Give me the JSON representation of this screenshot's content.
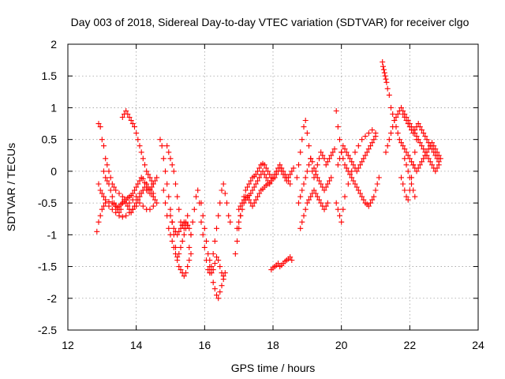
{
  "chart_data": {
    "type": "scatter",
    "title": "Day 003 of 2018, Sidereal Day-to-day VTEC variation (SDTVAR) for receiver clgo",
    "xlabel": "GPS time / hours",
    "ylabel": "SDTVAR / TECUs",
    "xlim": [
      12,
      24
    ],
    "ylim": [
      -2.5,
      2
    ],
    "x_ticks": [
      "12",
      "14",
      "16",
      "18",
      "20",
      "22",
      "24"
    ],
    "y_ticks": [
      "2",
      "1.5",
      "1",
      "0.5",
      "0",
      "-0.5",
      "-1",
      "-1.5",
      "-2",
      "-2.5"
    ],
    "grid": true,
    "marker": "+",
    "color": "#ff0000",
    "series": [
      {
        "name": "SDTVAR",
        "x": [
          12.85,
          12.9,
          12.95,
          13.0,
          13.05,
          13.1,
          13.2,
          13.3,
          13.4,
          13.5,
          13.6,
          13.7,
          13.8,
          13.9,
          14.0,
          14.1,
          14.2,
          14.3,
          14.4,
          14.5,
          12.9,
          12.95,
          13.0,
          13.05,
          13.1,
          13.15,
          13.2,
          13.25,
          13.3,
          13.35,
          13.4,
          13.5,
          13.6,
          13.7,
          13.8,
          13.9,
          14.0,
          14.1,
          14.2,
          14.3,
          14.4,
          14.5,
          12.9,
          12.95,
          13.0,
          13.05,
          13.1,
          13.2,
          13.3,
          13.35,
          13.4,
          13.45,
          13.5,
          13.55,
          13.6,
          13.65,
          13.7,
          13.75,
          13.8,
          13.85,
          13.9,
          13.95,
          14.0,
          14.05,
          14.1,
          14.15,
          14.2,
          14.25,
          14.3,
          14.35,
          14.4,
          14.45,
          14.5,
          14.55,
          14.6,
          13.05,
          13.1,
          13.15,
          13.2,
          13.25,
          13.3,
          13.35,
          13.4,
          13.45,
          13.5,
          13.55,
          13.6,
          13.65,
          13.7,
          13.75,
          13.8,
          13.85,
          13.9,
          13.95,
          14.0,
          14.05,
          14.1,
          14.15,
          14.2,
          14.25,
          14.3,
          14.35,
          14.4,
          14.45,
          14.5,
          14.55,
          14.6,
          13.6,
          13.65,
          13.7,
          13.75,
          13.8,
          13.85,
          13.9,
          13.95,
          14.0,
          14.05,
          14.1,
          14.15,
          14.2,
          14.25,
          14.3,
          14.35,
          14.4,
          14.45,
          14.5,
          14.7,
          14.75,
          14.8,
          14.85,
          14.9,
          14.95,
          15.0,
          15.05,
          15.1,
          15.15,
          15.2,
          15.25,
          15.3,
          15.35,
          15.4,
          15.45,
          15.5,
          15.55,
          15.6,
          14.8,
          14.85,
          14.9,
          14.95,
          15.0,
          15.05,
          15.1,
          15.15,
          15.2,
          15.25,
          15.3,
          15.35,
          15.4,
          15.45,
          15.5,
          15.55,
          15.6,
          14.9,
          14.95,
          15.0,
          15.05,
          15.1,
          15.15,
          15.2,
          15.25,
          15.3,
          15.35,
          15.4,
          15.45,
          15.5,
          15.0,
          15.05,
          15.1,
          15.15,
          15.2,
          15.25,
          15.3,
          15.35,
          15.4,
          15.45,
          15.5,
          15.55,
          15.6,
          15.65,
          15.7,
          15.75,
          15.8,
          15.85,
          15.9,
          15.95,
          16.0,
          16.05,
          16.1,
          16.15,
          16.2,
          16.25,
          16.3,
          16.35,
          16.4,
          16.45,
          16.5,
          16.55,
          16.6,
          16.65,
          16.7,
          16.75,
          15.9,
          15.95,
          16.0,
          16.05,
          16.1,
          16.15,
          16.2,
          16.25,
          16.3,
          16.35,
          16.4,
          16.45,
          16.5,
          16.55,
          16.15,
          16.2,
          16.25,
          16.3,
          16.35,
          16.4,
          16.45,
          16.5,
          16.55,
          16.6,
          16.9,
          16.95,
          17.0,
          17.05,
          17.1,
          17.15,
          17.2,
          17.25,
          17.3,
          17.35,
          17.4,
          17.45,
          17.5,
          17.55,
          17.6,
          17.65,
          17.7,
          17.75,
          17.8,
          17.85,
          17.9,
          17.95,
          18.0,
          18.05,
          18.1,
          18.15,
          18.2,
          18.25,
          18.3,
          18.35,
          18.4,
          18.45,
          18.5,
          18.55,
          18.6,
          16.95,
          17.0,
          17.05,
          17.1,
          17.15,
          17.2,
          17.25,
          17.3,
          17.35,
          17.4,
          17.45,
          17.5,
          17.55,
          17.6,
          17.65,
          17.7,
          17.75,
          17.8,
          17.85,
          17.9,
          17.95,
          18.0,
          18.05,
          18.1,
          18.15,
          18.2,
          18.25,
          18.3,
          18.35,
          18.4,
          18.45,
          18.5,
          17.0,
          17.05,
          17.1,
          17.15,
          17.2,
          17.25,
          17.3,
          17.35,
          17.4,
          17.45,
          17.5,
          17.55,
          17.6,
          17.65,
          17.7,
          17.75,
          17.8,
          17.85,
          17.9,
          17.95,
          18.0,
          17.95,
          18.0,
          18.05,
          18.1,
          18.15,
          18.2,
          18.25,
          18.3,
          18.35,
          18.4,
          18.45,
          18.5,
          18.55,
          18.7,
          18.75,
          18.8,
          18.85,
          18.9,
          18.95,
          19.0,
          19.05,
          19.1,
          19.15,
          19.2,
          19.25,
          19.3,
          19.35,
          19.4,
          19.45,
          19.5,
          19.55,
          19.6,
          19.65,
          19.7,
          19.75,
          19.8,
          18.75,
          18.8,
          18.85,
          18.9,
          18.95,
          19.0,
          19.05,
          19.1,
          19.15,
          19.2,
          19.25,
          19.3,
          19.35,
          19.4,
          19.45,
          19.5,
          19.55,
          19.6,
          19.65,
          19.7,
          18.8,
          18.85,
          18.9,
          18.95,
          19.0,
          19.05,
          19.1,
          19.15,
          19.2,
          19.25,
          19.3,
          19.35,
          19.4,
          19.45,
          19.5,
          19.55,
          19.6,
          19.85,
          19.9,
          19.95,
          20.0,
          20.05,
          20.1,
          20.15,
          20.2,
          20.25,
          20.3,
          20.35,
          20.4,
          20.45,
          20.5,
          20.55,
          20.6,
          20.65,
          20.7,
          20.75,
          20.8,
          20.85,
          20.9,
          20.95,
          21.0,
          21.05,
          21.1,
          19.9,
          19.95,
          20.0,
          20.05,
          20.1,
          20.15,
          20.2,
          20.25,
          20.3,
          20.35,
          20.4,
          20.45,
          20.5,
          20.55,
          20.6,
          20.65,
          20.7,
          20.75,
          20.8,
          20.85,
          20.9,
          20.95,
          21.0,
          19.85,
          19.9,
          19.95,
          20.0,
          20.05,
          20.1,
          20.2,
          20.3,
          20.4,
          20.5,
          20.6,
          20.7,
          20.8,
          20.9,
          21.0,
          21.2,
          21.22,
          21.24,
          21.26,
          21.28,
          21.3,
          21.32,
          21.35,
          21.4,
          21.45,
          21.5,
          21.55,
          21.6,
          21.65,
          21.7,
          21.75,
          21.8,
          21.85,
          21.9,
          21.95,
          22.0,
          22.05,
          22.1,
          22.15,
          22.2,
          22.25,
          22.3,
          22.35,
          22.4,
          22.45,
          22.5,
          22.55,
          22.6,
          22.65,
          22.7,
          22.75,
          22.8,
          22.85,
          22.9,
          21.3,
          21.35,
          21.4,
          21.45,
          21.5,
          21.55,
          21.6,
          21.65,
          21.7,
          21.75,
          21.8,
          21.85,
          21.9,
          21.95,
          22.0,
          22.05,
          22.1,
          22.15,
          22.2,
          22.25,
          22.3,
          22.35,
          22.4,
          22.45,
          22.5,
          22.55,
          22.6,
          22.65,
          22.7,
          22.75,
          22.8,
          22.85,
          21.8,
          21.85,
          21.9,
          21.95,
          22.0,
          22.05,
          22.1,
          22.15,
          22.2,
          22.25,
          22.3,
          22.35,
          22.4,
          22.45,
          22.5,
          22.55,
          22.6,
          22.65,
          22.7,
          22.75,
          22.8,
          22.85,
          21.75,
          21.8,
          21.85,
          21.9,
          21.95,
          22.0,
          22.05,
          22.1,
          22.15,
          22.2,
          21.85,
          21.9,
          21.95,
          22.0,
          22.05,
          22.1,
          22.15
        ],
        "y": [
          -0.95,
          -0.8,
          -0.7,
          -0.6,
          -0.55,
          -0.5,
          -0.55,
          -0.6,
          -0.65,
          -0.7,
          -0.72,
          -0.7,
          -0.65,
          -0.6,
          -0.55,
          -0.5,
          -0.55,
          -0.6,
          -0.6,
          -0.55,
          0.75,
          0.7,
          0.5,
          0.4,
          0.2,
          0.1,
          0.0,
          -0.1,
          -0.2,
          -0.25,
          -0.3,
          -0.35,
          -0.4,
          -0.45,
          -0.5,
          -0.45,
          -0.4,
          -0.35,
          -0.3,
          -0.3,
          -0.35,
          -0.35,
          -0.2,
          -0.3,
          -0.35,
          -0.4,
          -0.45,
          -0.48,
          -0.5,
          -0.52,
          -0.55,
          -0.57,
          -0.55,
          -0.52,
          -0.5,
          -0.48,
          -0.45,
          -0.42,
          -0.4,
          -0.38,
          -0.35,
          -0.3,
          -0.25,
          -0.2,
          -0.15,
          -0.1,
          -0.12,
          -0.18,
          -0.25,
          -0.3,
          -0.28,
          -0.25,
          -0.2,
          -0.15,
          -0.1,
          0.0,
          -0.1,
          -0.15,
          -0.2,
          -0.3,
          -0.4,
          -0.5,
          -0.55,
          -0.6,
          -0.65,
          -0.6,
          -0.5,
          -0.45,
          -0.5,
          -0.55,
          -0.6,
          -0.65,
          -0.6,
          -0.55,
          -0.5,
          -0.45,
          -0.4,
          -0.35,
          -0.3,
          -0.25,
          -0.2,
          -0.25,
          -0.3,
          -0.35,
          -0.4,
          -0.45,
          -0.5,
          0.85,
          0.9,
          0.95,
          0.9,
          0.85,
          0.8,
          0.75,
          0.7,
          0.6,
          0.5,
          0.4,
          0.3,
          0.2,
          0.1,
          0.0,
          -0.05,
          -0.1,
          -0.15,
          -0.2,
          0.5,
          0.4,
          0.2,
          0.0,
          -0.2,
          -0.4,
          -0.6,
          -0.8,
          -1.0,
          -1.2,
          -1.4,
          -1.5,
          -1.55,
          -1.6,
          -1.65,
          -1.6,
          -1.5,
          -1.4,
          -1.3,
          -0.3,
          -0.5,
          -0.7,
          -0.9,
          -1.0,
          -1.1,
          -1.2,
          -1.3,
          -1.35,
          -1.3,
          -1.2,
          -1.1,
          -1.0,
          -0.9,
          -0.85,
          -0.9,
          -1.0,
          0.4,
          0.3,
          0.2,
          0.1,
          0.0,
          -0.2,
          -0.4,
          -0.6,
          -0.8,
          -0.85,
          -0.9,
          -0.8,
          -0.7,
          -0.7,
          -0.8,
          -0.9,
          -0.95,
          -1.0,
          -0.95,
          -0.9,
          -0.85,
          -0.8,
          -0.82,
          -0.85,
          -1.2,
          -1.0,
          -0.8,
          -0.6,
          -0.4,
          -0.3,
          -0.5,
          -0.8,
          -1.0,
          -1.2,
          -1.4,
          -1.55,
          -1.6,
          -1.5,
          -1.3,
          -1.1,
          -0.9,
          -0.7,
          -0.5,
          -0.3,
          -0.2,
          -0.35,
          -0.5,
          -0.7,
          -0.8,
          -0.5,
          -0.7,
          -0.9,
          -1.1,
          -1.3,
          -1.5,
          -1.6,
          -1.55,
          -1.45,
          -1.35,
          -1.4,
          -1.5,
          -1.6,
          -1.65,
          -1.4,
          -1.6,
          -1.75,
          -1.85,
          -1.95,
          -2.0,
          -1.9,
          -1.8,
          -1.7,
          -1.6,
          -1.3,
          -1.1,
          -0.9,
          -0.7,
          -0.5,
          -0.4,
          -0.3,
          -0.25,
          -0.2,
          -0.15,
          -0.1,
          -0.08,
          -0.05,
          0.0,
          0.05,
          0.1,
          0.12,
          0.1,
          0.05,
          0.0,
          -0.05,
          -0.1,
          -0.12,
          -0.1,
          -0.05,
          0.0,
          0.05,
          0.0,
          -0.05,
          -0.1,
          -0.15,
          -0.1,
          -0.05,
          0.0,
          0.05,
          -0.9,
          -0.8,
          -0.7,
          -0.6,
          -0.5,
          -0.45,
          -0.4,
          -0.38,
          -0.35,
          -0.3,
          -0.25,
          -0.2,
          -0.15,
          -0.1,
          -0.05,
          0.0,
          -0.05,
          -0.1,
          -0.15,
          -0.2,
          -0.15,
          -0.1,
          -0.05,
          0.0,
          0.05,
          0.1,
          0.05,
          0.0,
          -0.05,
          -0.1,
          -0.15,
          -0.2,
          -0.6,
          -0.55,
          -0.5,
          -0.45,
          -0.4,
          -0.42,
          -0.45,
          -0.5,
          -0.55,
          -0.5,
          -0.45,
          -0.4,
          -0.35,
          -0.3,
          -0.28,
          -0.25,
          -0.22,
          -0.2,
          -0.18,
          -0.15,
          -0.12,
          -1.55,
          -1.52,
          -1.5,
          -1.48,
          -1.45,
          -1.5,
          -1.48,
          -1.45,
          -1.42,
          -1.4,
          -1.38,
          -1.35,
          -1.4,
          -0.1,
          0.1,
          0.3,
          0.5,
          0.7,
          0.8,
          0.6,
          0.4,
          0.2,
          0.0,
          -0.1,
          0.0,
          0.1,
          0.2,
          0.3,
          0.25,
          0.2,
          0.1,
          0.15,
          0.2,
          0.25,
          0.3,
          0.35,
          -0.5,
          -0.4,
          -0.3,
          -0.2,
          -0.1,
          0.0,
          0.1,
          0.2,
          0.15,
          0.05,
          -0.05,
          -0.1,
          -0.15,
          -0.2,
          -0.25,
          -0.3,
          -0.25,
          -0.2,
          -0.15,
          -0.1,
          -0.9,
          -0.8,
          -0.7,
          -0.6,
          -0.5,
          -0.45,
          -0.4,
          -0.35,
          -0.3,
          -0.35,
          -0.4,
          -0.45,
          -0.5,
          -0.55,
          -0.6,
          -0.55,
          -0.5,
          0.95,
          0.7,
          0.5,
          0.3,
          0.2,
          0.1,
          0.05,
          0.0,
          -0.05,
          -0.1,
          -0.15,
          -0.2,
          -0.25,
          -0.3,
          -0.35,
          -0.4,
          -0.45,
          -0.5,
          -0.52,
          -0.55,
          -0.5,
          -0.45,
          -0.4,
          -0.3,
          -0.2,
          -0.1,
          0.1,
          0.2,
          0.3,
          0.4,
          0.35,
          0.3,
          0.25,
          0.2,
          0.15,
          0.1,
          0.05,
          0.0,
          0.05,
          0.1,
          0.15,
          0.2,
          0.25,
          0.3,
          0.35,
          0.4,
          0.45,
          0.5,
          0.55,
          -0.5,
          -0.6,
          -0.7,
          -0.8,
          -0.6,
          -0.4,
          -0.2,
          0.0,
          0.3,
          0.4,
          0.5,
          0.55,
          0.6,
          0.65,
          0.6,
          1.72,
          1.65,
          1.6,
          1.55,
          1.5,
          1.45,
          1.4,
          1.3,
          1.2,
          1.0,
          0.9,
          0.8,
          0.7,
          0.6,
          0.5,
          0.45,
          0.4,
          0.35,
          0.3,
          0.25,
          0.2,
          0.15,
          0.1,
          0.05,
          0.0,
          0.05,
          0.1,
          0.15,
          0.2,
          0.25,
          0.3,
          0.35,
          0.4,
          0.45,
          0.4,
          0.35,
          0.3,
          0.25,
          0.2,
          0.3,
          0.4,
          0.5,
          0.6,
          0.7,
          0.8,
          0.85,
          0.9,
          0.95,
          1.0,
          0.95,
          0.9,
          0.85,
          0.8,
          0.75,
          0.7,
          0.65,
          0.6,
          0.55,
          0.5,
          0.45,
          0.4,
          0.35,
          0.3,
          0.25,
          0.2,
          0.15,
          0.1,
          0.05,
          0.0,
          0.05,
          0.1,
          0.9,
          0.85,
          0.8,
          0.75,
          0.7,
          0.65,
          0.6,
          0.65,
          0.7,
          0.75,
          0.7,
          0.65,
          0.6,
          0.55,
          0.5,
          0.45,
          0.4,
          0.35,
          0.3,
          0.25,
          0.2,
          0.15,
          -0.1,
          -0.2,
          -0.3,
          -0.4,
          -0.45,
          -0.3,
          -0.1,
          0.1,
          0.3,
          0.5,
          0.2,
          0.1,
          0.0,
          -0.1,
          -0.2,
          -0.3,
          -0.4
        ]
      }
    ]
  }
}
